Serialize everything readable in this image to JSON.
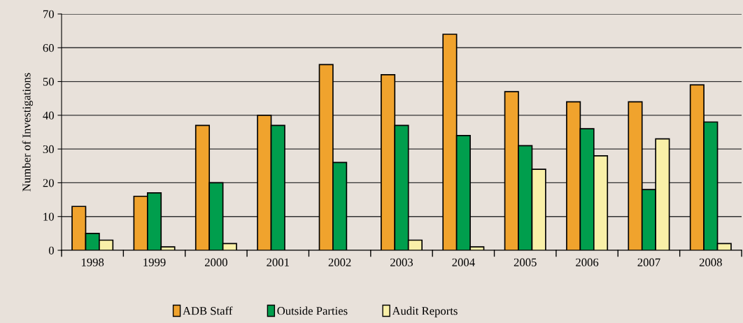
{
  "chart_data": {
    "type": "bar",
    "ylabel": "Number of Investigations",
    "categories": [
      "1998",
      "1999",
      "2000",
      "2001",
      "2002",
      "2003",
      "2004",
      "2005",
      "2006",
      "2007",
      "2008"
    ],
    "series": [
      {
        "name": "ADB Staff",
        "color": "#f0a32d",
        "values": [
          13,
          16,
          37,
          40,
          55,
          52,
          64,
          47,
          44,
          44,
          49
        ]
      },
      {
        "name": "Outside Parties",
        "color": "#009e4d",
        "values": [
          5,
          17,
          20,
          37,
          26,
          37,
          34,
          31,
          36,
          18,
          38
        ]
      },
      {
        "name": "Audit Reports",
        "color": "#f9f0a8",
        "values": [
          3,
          1,
          2,
          null,
          null,
          3,
          1,
          24,
          28,
          33,
          2
        ]
      }
    ],
    "ylim": [
      0,
      70
    ],
    "yticks": [
      0,
      10,
      20,
      30,
      40,
      50,
      60,
      70
    ],
    "grid": "y",
    "legend": "bottom"
  }
}
